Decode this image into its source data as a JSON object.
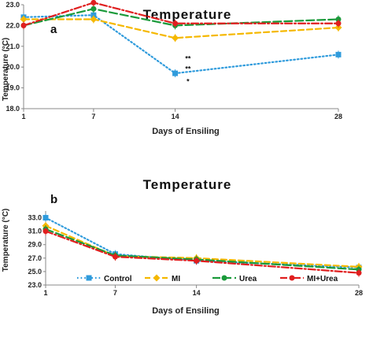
{
  "chart_data": [
    {
      "type": "line",
      "panel": "a",
      "title": "Temperature",
      "xlabel": "Days of Ensiling",
      "ylabel": "Temperature (°C)",
      "x": [
        1,
        7,
        14,
        28
      ],
      "x_ticks": [
        "1",
        "7",
        "14",
        "28"
      ],
      "ylim": [
        18.0,
        23.0
      ],
      "y_ticks": [
        "18.0",
        "19.0",
        "20.0",
        "21.0",
        "22.0",
        "23.0"
      ],
      "series": [
        {
          "name": "Control",
          "color": "#2f9bdc",
          "dash": "dotted",
          "marker": "square",
          "values": [
            22.4,
            22.5,
            19.7,
            20.6
          ]
        },
        {
          "name": "MI",
          "color": "#f5b800",
          "dash": "dashed",
          "marker": "diamond",
          "values": [
            22.3,
            22.3,
            21.4,
            21.9
          ]
        },
        {
          "name": "Urea",
          "color": "#1a9a3a",
          "dash": "longdash",
          "marker": "circle",
          "values": [
            22.0,
            22.8,
            22.0,
            22.3
          ]
        },
        {
          "name": "MI+Urea",
          "color": "#e01f1f",
          "dash": "dashdot",
          "marker": "circle",
          "values": [
            22.0,
            23.1,
            22.1,
            22.1
          ]
        }
      ],
      "annotations": [
        {
          "text": "**",
          "x": 15.1,
          "y": 20.3
        },
        {
          "text": "**",
          "x": 15.1,
          "y": 19.8
        },
        {
          "text": "*",
          "x": 15.1,
          "y": 19.2
        }
      ]
    },
    {
      "type": "line",
      "panel": "b",
      "title": "Temperature",
      "xlabel": "Days of Ensiling",
      "ylabel": "Temperature (°C)",
      "x": [
        1,
        7,
        14,
        28
      ],
      "x_ticks": [
        "1",
        "7",
        "14",
        "28"
      ],
      "ylim": [
        23.0,
        34.0
      ],
      "y_ticks": [
        "23.0",
        "25.0",
        "27.0",
        "29.0",
        "31.0",
        "33.0"
      ],
      "legend_position": "bottom",
      "series": [
        {
          "name": "Control",
          "color": "#2f9bdc",
          "dash": "dotted",
          "marker": "square",
          "values": [
            33.0,
            27.6,
            26.6,
            25.6
          ]
        },
        {
          "name": "MI",
          "color": "#f5b800",
          "dash": "dashed",
          "marker": "diamond",
          "values": [
            31.8,
            27.3,
            27.0,
            25.7
          ]
        },
        {
          "name": "Urea",
          "color": "#1a9a3a",
          "dash": "longdash",
          "marker": "circle",
          "values": [
            31.3,
            27.4,
            26.8,
            25.3
          ]
        },
        {
          "name": "MI+Urea",
          "color": "#e01f1f",
          "dash": "dashdot",
          "marker": "circle",
          "values": [
            31.0,
            27.2,
            26.6,
            24.8
          ]
        }
      ]
    }
  ]
}
